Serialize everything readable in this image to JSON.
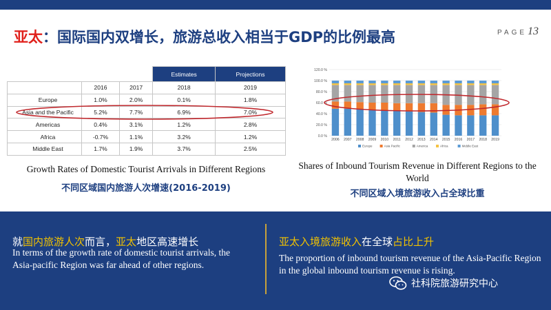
{
  "header": {
    "title_accent": "亚太",
    "title_rest": "：国际国内双增长，旅游总收入相当于GDP的比例最高",
    "page_label": "PAGE",
    "page_number": "13"
  },
  "table": {
    "estimates_label": "Estimates",
    "projections_label": "Projections",
    "years": [
      "2016",
      "2017",
      "2018",
      "2019"
    ],
    "rows": [
      {
        "region": "Europe",
        "values": [
          "1.0%",
          "2.0%",
          "0.1%",
          "1.8%"
        ]
      },
      {
        "region": "Asia and the Pacific",
        "values": [
          "5.2%",
          "7.7%",
          "6.9%",
          "7.0%"
        ]
      },
      {
        "region": "Americas",
        "values": [
          "0.4%",
          "3.1%",
          "1.2%",
          "2.8%"
        ]
      },
      {
        "region": "Africa",
        "values": [
          "-0.7%",
          "1.1%",
          "3.2%",
          "1.2%"
        ]
      },
      {
        "region": "Middle East",
        "values": [
          "1.7%",
          "1.9%",
          "3.7%",
          "2.5%"
        ]
      }
    ],
    "caption_en": "Growth Rates of Domestic Tourist Arrivals in Different Regions",
    "caption_cn": "不同区域国内旅游人次增速(2016-2019)"
  },
  "chart_data": {
    "type": "bar",
    "stacked": true,
    "categories": [
      "2006",
      "2007",
      "2008",
      "2009",
      "2010",
      "2011",
      "2012",
      "2013",
      "2014",
      "2015",
      "2016",
      "2017",
      "2018",
      "2019"
    ],
    "y_ticks": [
      "0.0 %",
      "20.0 %",
      "40.0 %",
      "60.0 %",
      "80.0 %",
      "100.0 %",
      "120.0 %"
    ],
    "ylim": [
      0,
      120
    ],
    "series": [
      {
        "name": "Europe",
        "values": [
          49,
          49,
          48,
          47,
          46,
          45,
          44,
          43,
          42,
          38,
          37,
          37,
          37,
          37
        ]
      },
      {
        "name": "Asia Pacific",
        "values": [
          13,
          13,
          13,
          13,
          14,
          14,
          15,
          16,
          17,
          18,
          19,
          19,
          20,
          20
        ]
      },
      {
        "name": "America",
        "values": [
          30,
          30,
          31,
          32,
          32,
          33,
          33,
          33,
          33,
          36,
          36,
          36,
          35,
          35
        ]
      },
      {
        "name": "Africa",
        "values": [
          3,
          3,
          3,
          3,
          3,
          3,
          3,
          3,
          3,
          3,
          3,
          3,
          3,
          3
        ]
      },
      {
        "name": "Middle East",
        "values": [
          5,
          5,
          5,
          5,
          5,
          5,
          5,
          5,
          5,
          5,
          5,
          5,
          5,
          5
        ]
      }
    ],
    "colors": [
      "#4e8fcb",
      "#ee7a2f",
      "#a5a5a5",
      "#f5c342",
      "#5b9bd5"
    ],
    "legend": "bottom",
    "grid": true,
    "caption_en": "Shares of Inbound Tourism Revenue in Different Regions to the World",
    "caption_cn": "不同区域入境旅游收入占全球比重"
  },
  "bottom": {
    "left_cn_1": "就",
    "left_cn_2": "国内旅游人次",
    "left_cn_3": "而言，",
    "left_cn_4": "亚太",
    "left_cn_5": "地区高速增长",
    "left_en": "In terms of the growth rate of domestic tourist arrivals, the Asia-pacific Region was far ahead of other regions.",
    "right_cn_1": "亚太入境旅游收入",
    "right_cn_2": "在全球",
    "right_cn_3": "占比上升",
    "right_en": "The proportion of inbound tourism revenue of the Asia-Pacific Region in the global inbound tourism revenue is rising.",
    "watermark": "社科院旅游研究中心"
  },
  "theme": {
    "navy": "#1d3f80",
    "red": "#e0201b",
    "yellow": "#f2c200"
  }
}
